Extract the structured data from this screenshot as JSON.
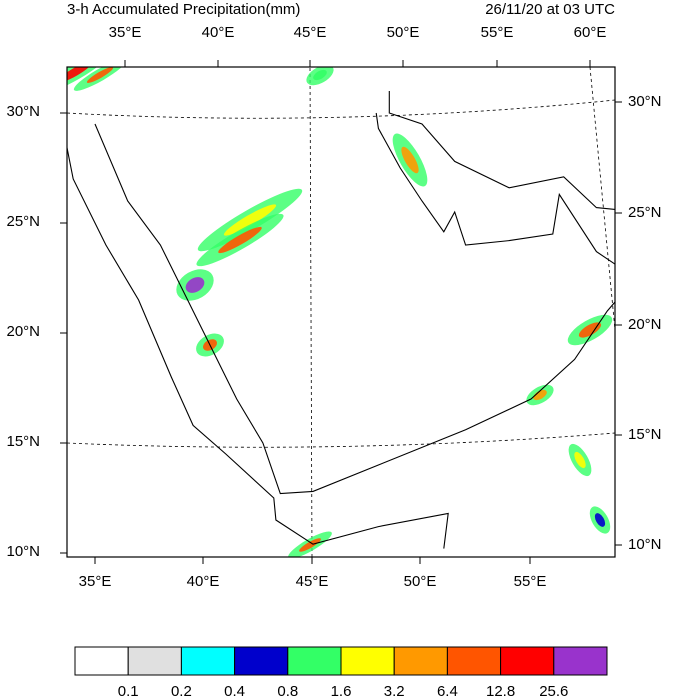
{
  "title": "3-h Accumulated Precipitation(mm)",
  "time": "26/11/20 at 03 UTC",
  "top_labels": [
    "35°E",
    "40°E",
    "45°E",
    "50°E",
    "55°E",
    "60°E"
  ],
  "bottom_labels": [
    "35°E",
    "40°E",
    "45°E",
    "50°E",
    "55°E"
  ],
  "left_labels": [
    "30°N",
    "25°N",
    "20°N",
    "15°N",
    "10°N"
  ],
  "right_labels": [
    "30°N",
    "25°N",
    "20°N",
    "15°N",
    "10°N"
  ],
  "colorbar": {
    "labels": [
      "0.1",
      "0.2",
      "0.4",
      "0.8",
      "1.6",
      "3.2",
      "6.4",
      "12.8",
      "25.6"
    ],
    "colors": [
      "#ffffff",
      "#e0e0e0",
      "#00ffff",
      "#0000cc",
      "#33ff66",
      "#ffff00",
      "#ff9900",
      "#ff5500",
      "#ff0000",
      "#9933cc"
    ]
  }
}
